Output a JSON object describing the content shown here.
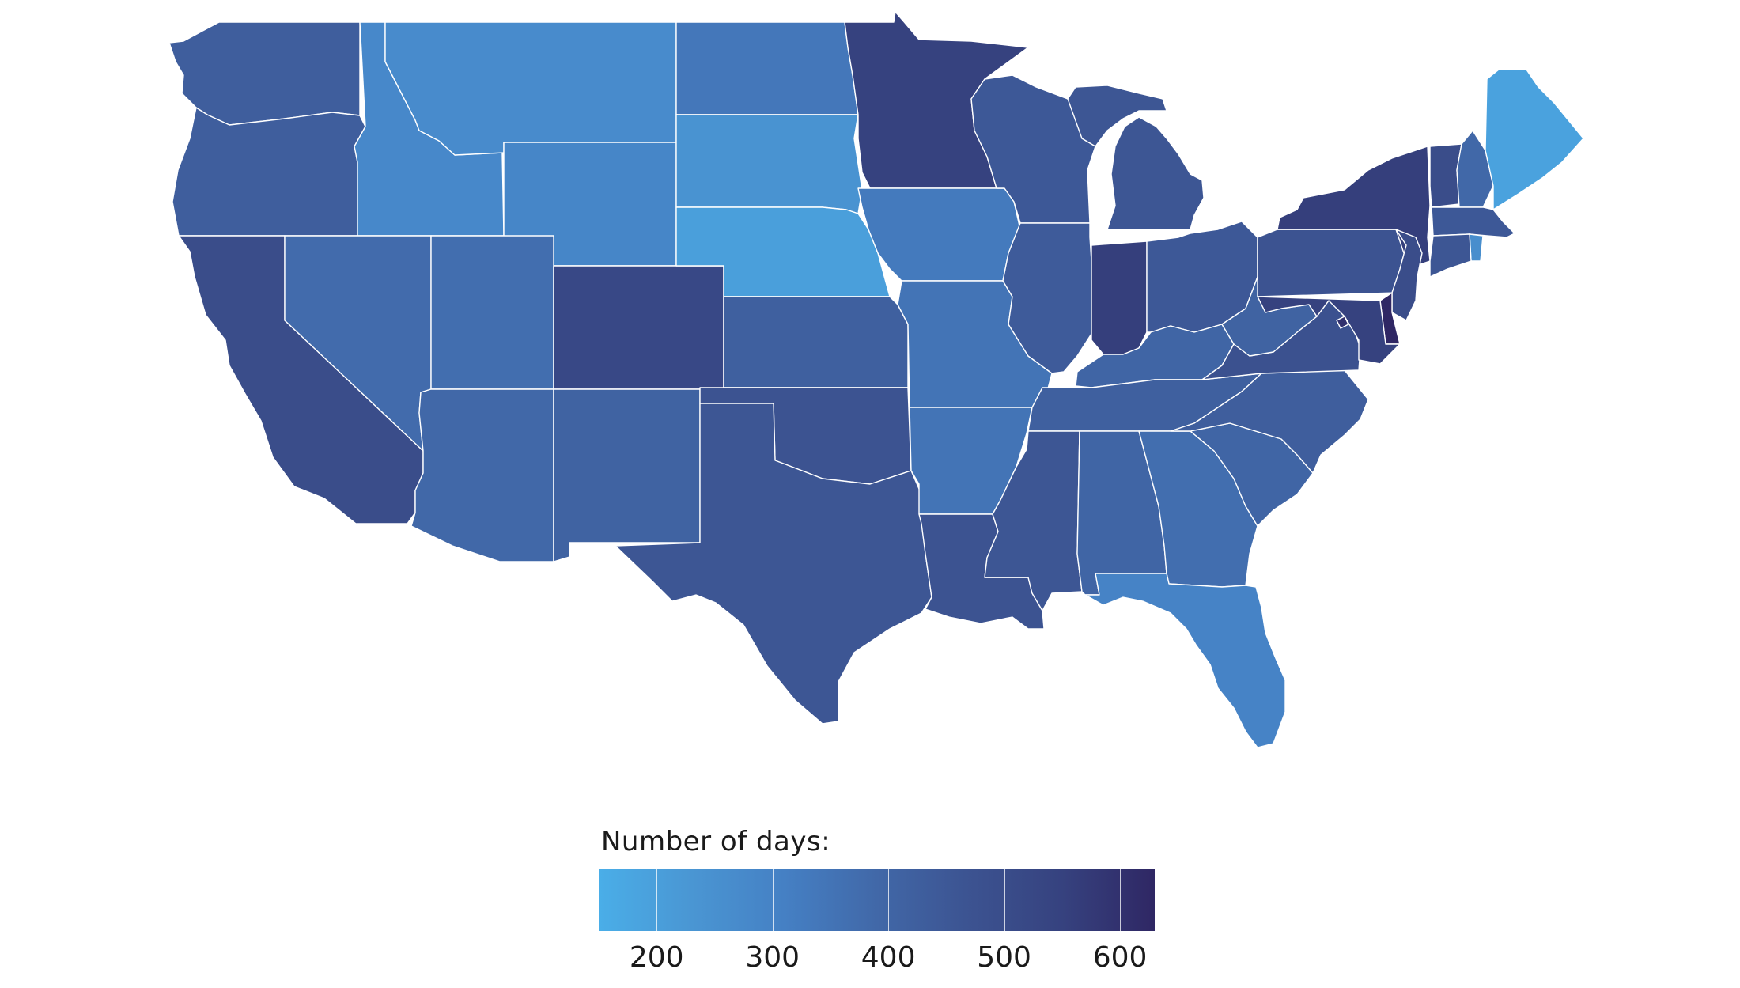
{
  "legend": {
    "title": "Number of days:",
    "min": 150,
    "max": 630,
    "ticks": [
      {
        "value": 200,
        "label": "200"
      },
      {
        "value": 300,
        "label": "300"
      },
      {
        "value": 400,
        "label": "400"
      },
      {
        "value": 500,
        "label": "500"
      },
      {
        "value": 600,
        "label": "600"
      }
    ],
    "color_low": "#4aaee8",
    "color_high": "#2f2764"
  },
  "map_data": {
    "type": "choropleth",
    "region": "contiguous United States",
    "color_scale": [
      "#4aaee8",
      "#4a96d3",
      "#4580c4",
      "#4168a8",
      "#3c5391",
      "#36427f",
      "#2f2764"
    ],
    "values": {
      "WA": 430,
      "OR": 430,
      "CA": 500,
      "ID": 280,
      "NV": 380,
      "MT": 270,
      "WY": 290,
      "UT": 370,
      "AZ": 390,
      "CO": 520,
      "NM": 410,
      "ND": 340,
      "SD": 240,
      "NE": 200,
      "KS": 420,
      "OK": 470,
      "TX": 460,
      "MN": 550,
      "IA": 330,
      "MO": 350,
      "AR": 350,
      "LA": 470,
      "WI": 450,
      "IL": 440,
      "MI": 460,
      "IN": 560,
      "OH": 450,
      "KY": 400,
      "TN": 420,
      "MS": 460,
      "AL": 400,
      "GA": 370,
      "FL": 300,
      "SC": 400,
      "NC": 430,
      "VA": 480,
      "WV": 410,
      "PA": 470,
      "NY": 560,
      "VT": 500,
      "NH": 390,
      "ME": 190,
      "MA": 450,
      "RI": 260,
      "CT": 460,
      "NJ": 500,
      "DE": 630,
      "MD": 550,
      "DC": 600
    }
  }
}
